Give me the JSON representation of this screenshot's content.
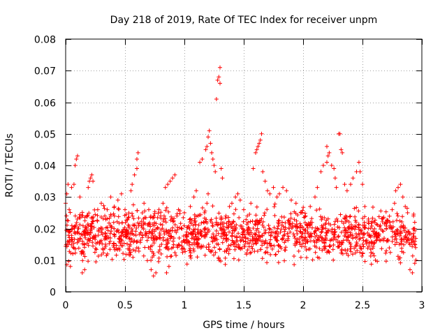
{
  "chart_data": {
    "type": "scatter",
    "title": "Day 218 of 2019, Rate Of TEC Index for receiver unpm",
    "xlabel": "GPS time / hours",
    "ylabel": "ROTI / TECUs",
    "xlim": [
      0,
      3
    ],
    "ylim": [
      0,
      0.08
    ],
    "xticks": [
      0,
      0.5,
      1,
      1.5,
      2,
      2.5,
      3
    ],
    "xtick_labels": [
      "0",
      "0.5",
      "1",
      "1.5",
      "2",
      "2.5",
      "3"
    ],
    "yticks": [
      0,
      0.01,
      0.02,
      0.03,
      0.04,
      0.05,
      0.06,
      0.07,
      0.08
    ],
    "ytick_labels": [
      "0",
      "0.01",
      "0.02",
      "0.03",
      "0.04",
      "0.05",
      "0.06",
      "0.07",
      "0.08"
    ],
    "grid": true,
    "marker": "+",
    "marker_color": "#ff0000",
    "x_range_of_points": [
      0,
      2.95
    ],
    "typical_range": [
      0.005,
      0.03
    ],
    "series": [
      {
        "name": "ROTI",
        "points": [
          [
            0.0,
            0.028
          ],
          [
            0.01,
            0.031
          ],
          [
            0.02,
            0.034
          ],
          [
            0.03,
            0.026
          ],
          [
            0.05,
            0.033
          ],
          [
            0.04,
            0.008
          ],
          [
            0.06,
            0.012
          ],
          [
            0.08,
            0.04
          ],
          [
            0.09,
            0.042
          ],
          [
            0.1,
            0.043
          ],
          [
            0.07,
            0.034
          ],
          [
            0.12,
            0.03
          ],
          [
            0.14,
            0.006
          ],
          [
            0.16,
            0.007
          ],
          [
            0.18,
            0.024
          ],
          [
            0.19,
            0.033
          ],
          [
            0.2,
            0.035
          ],
          [
            0.21,
            0.036
          ],
          [
            0.23,
            0.035
          ],
          [
            0.22,
            0.037
          ],
          [
            0.27,
            0.026
          ],
          [
            0.3,
            0.028
          ],
          [
            0.33,
            0.024
          ],
          [
            0.35,
            0.026
          ],
          [
            0.38,
            0.03
          ],
          [
            0.41,
            0.027
          ],
          [
            0.44,
            0.029
          ],
          [
            0.47,
            0.031
          ],
          [
            0.5,
            0.026
          ],
          [
            0.55,
            0.032
          ],
          [
            0.56,
            0.034
          ],
          [
            0.58,
            0.037
          ],
          [
            0.6,
            0.042
          ],
          [
            0.61,
            0.044
          ],
          [
            0.6,
            0.039
          ],
          [
            0.66,
            0.028
          ],
          [
            0.7,
            0.026
          ],
          [
            0.72,
            0.007
          ],
          [
            0.74,
            0.005
          ],
          [
            0.76,
            0.006
          ],
          [
            0.8,
            0.024
          ],
          [
            0.82,
            0.028
          ],
          [
            0.84,
            0.033
          ],
          [
            0.86,
            0.034
          ],
          [
            0.88,
            0.035
          ],
          [
            0.9,
            0.036
          ],
          [
            0.92,
            0.037
          ],
          [
            0.85,
            0.006
          ],
          [
            0.87,
            0.008
          ],
          [
            0.95,
            0.026
          ],
          [
            1.0,
            0.025
          ],
          [
            1.05,
            0.027
          ],
          [
            1.08,
            0.03
          ],
          [
            1.1,
            0.032
          ],
          [
            1.13,
            0.041
          ],
          [
            1.15,
            0.042
          ],
          [
            1.18,
            0.045
          ],
          [
            1.19,
            0.046
          ],
          [
            1.2,
            0.049
          ],
          [
            1.21,
            0.051
          ],
          [
            1.22,
            0.047
          ],
          [
            1.23,
            0.044
          ],
          [
            1.24,
            0.042
          ],
          [
            1.25,
            0.04
          ],
          [
            1.26,
            0.038
          ],
          [
            1.27,
            0.061
          ],
          [
            1.28,
            0.067
          ],
          [
            1.29,
            0.068
          ],
          [
            1.3,
            0.071
          ],
          [
            1.3,
            0.066
          ],
          [
            1.31,
            0.039
          ],
          [
            1.32,
            0.036
          ],
          [
            1.17,
            0.025
          ],
          [
            1.19,
            0.028
          ],
          [
            1.2,
            0.031
          ],
          [
            1.35,
            0.024
          ],
          [
            1.38,
            0.027
          ],
          [
            1.4,
            0.028
          ],
          [
            1.43,
            0.03
          ],
          [
            1.45,
            0.031
          ],
          [
            1.47,
            0.029
          ],
          [
            1.5,
            0.026
          ],
          [
            1.53,
            0.024
          ],
          [
            1.56,
            0.028
          ],
          [
            1.58,
            0.039
          ],
          [
            1.6,
            0.044
          ],
          [
            1.61,
            0.045
          ],
          [
            1.62,
            0.046
          ],
          [
            1.63,
            0.047
          ],
          [
            1.65,
            0.05
          ],
          [
            1.64,
            0.048
          ],
          [
            1.66,
            0.038
          ],
          [
            1.68,
            0.035
          ],
          [
            1.7,
            0.032
          ],
          [
            1.72,
            0.031
          ],
          [
            1.75,
            0.033
          ],
          [
            1.78,
            0.03
          ],
          [
            1.8,
            0.031
          ],
          [
            1.83,
            0.033
          ],
          [
            1.86,
            0.032
          ],
          [
            1.9,
            0.029
          ],
          [
            1.94,
            0.028
          ],
          [
            1.98,
            0.025
          ],
          [
            2.02,
            0.024
          ],
          [
            2.06,
            0.027
          ],
          [
            2.1,
            0.03
          ],
          [
            2.12,
            0.033
          ],
          [
            2.15,
            0.038
          ],
          [
            2.17,
            0.04
          ],
          [
            2.2,
            0.041
          ],
          [
            2.21,
            0.043
          ],
          [
            2.2,
            0.046
          ],
          [
            2.22,
            0.044
          ],
          [
            2.24,
            0.04
          ],
          [
            2.26,
            0.039
          ],
          [
            2.27,
            0.036
          ],
          [
            2.28,
            0.033
          ],
          [
            2.3,
            0.05
          ],
          [
            2.31,
            0.05
          ],
          [
            2.32,
            0.045
          ],
          [
            2.33,
            0.044
          ],
          [
            2.35,
            0.034
          ],
          [
            2.37,
            0.032
          ],
          [
            2.4,
            0.034
          ],
          [
            2.42,
            0.036
          ],
          [
            2.45,
            0.038
          ],
          [
            2.47,
            0.041
          ],
          [
            2.48,
            0.038
          ],
          [
            2.5,
            0.034
          ],
          [
            2.52,
            0.027
          ],
          [
            2.55,
            0.023
          ],
          [
            2.6,
            0.022
          ],
          [
            2.65,
            0.021
          ],
          [
            2.7,
            0.02
          ],
          [
            2.73,
            0.022
          ],
          [
            2.75,
            0.026
          ],
          [
            2.77,
            0.028
          ],
          [
            2.78,
            0.032
          ],
          [
            2.8,
            0.033
          ],
          [
            2.82,
            0.034
          ],
          [
            2.84,
            0.03
          ],
          [
            2.86,
            0.027
          ],
          [
            2.88,
            0.025
          ],
          [
            2.9,
            0.007
          ],
          [
            2.92,
            0.006
          ],
          [
            2.93,
            0.024
          ],
          [
            2.94,
            0.022
          ],
          [
            2.95,
            0.01
          ],
          [
            2.94,
            0.009
          ]
        ]
      }
    ]
  }
}
